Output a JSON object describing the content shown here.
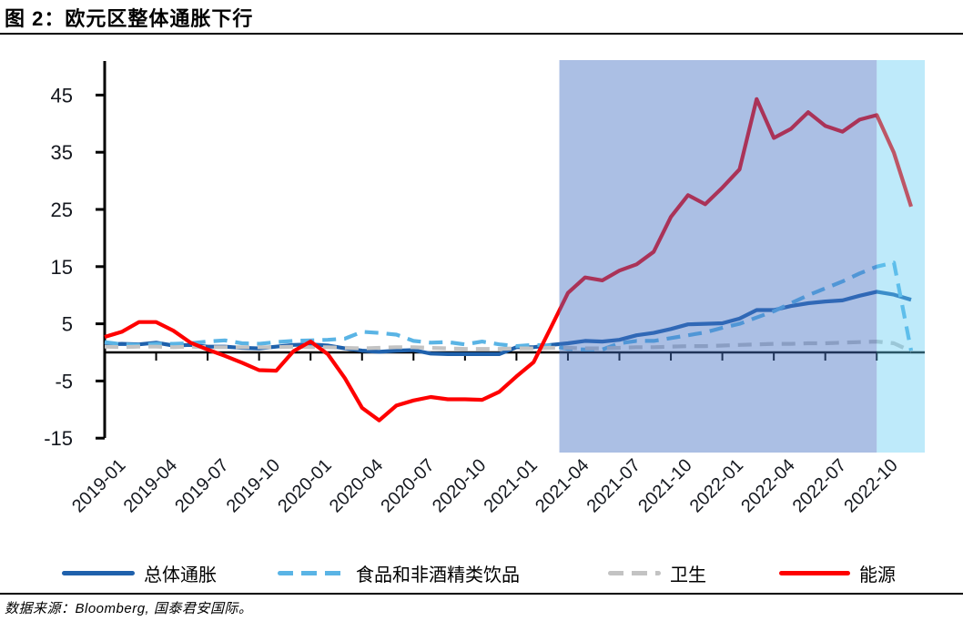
{
  "title": "图 2：欧元区整体通胀下行",
  "footer": {
    "source_text": "数据来源：Bloomberg, 国泰君安国际。"
  },
  "chart_data": {
    "type": "line",
    "title": "欧元区整体通胀下行",
    "x_unit": "monthly, 2019-01 to 2022-12 (YoY %)",
    "x_tick_labels": [
      "2019-01",
      "2019-04",
      "2019-07",
      "2019-10",
      "2020-01",
      "2020-04",
      "2020-07",
      "2020-10",
      "2021-01",
      "2021-04",
      "2021-07",
      "2021-10",
      "2022-01",
      "2022-04",
      "2022-07",
      "2022-10"
    ],
    "y_ticks": [
      -15,
      -5,
      5,
      15,
      25,
      35,
      45
    ],
    "ylim": [
      -15,
      50
    ],
    "grid": false,
    "legend_position": "bottom",
    "series": [
      {
        "name": "总体通胀",
        "color": "#1f61ac",
        "style": "solid",
        "values": [
          1.4,
          1.5,
          1.4,
          1.7,
          1.2,
          1.3,
          1.0,
          1.0,
          0.8,
          0.7,
          1.0,
          1.3,
          1.4,
          1.2,
          0.7,
          0.3,
          0.1,
          0.3,
          0.4,
          -0.2,
          -0.3,
          -0.3,
          -0.3,
          -0.3,
          0.9,
          0.9,
          1.3,
          1.6,
          2.0,
          1.9,
          2.2,
          3.0,
          3.4,
          4.1,
          4.9,
          5.0,
          5.1,
          5.9,
          7.4,
          7.4,
          8.1,
          8.6,
          8.9,
          9.1,
          9.9,
          10.6,
          10.1,
          9.2
        ]
      },
      {
        "name": "食品和非酒精类饮品",
        "color": "#5ab4e5",
        "style": "dashed",
        "values": [
          1.8,
          1.4,
          1.3,
          1.5,
          1.5,
          1.6,
          1.9,
          2.1,
          1.6,
          1.5,
          1.8,
          2.0,
          2.1,
          2.2,
          2.4,
          3.6,
          3.4,
          3.1,
          2.0,
          1.7,
          1.8,
          1.4,
          1.9,
          1.4,
          1.1,
          1.3,
          1.2,
          0.6,
          0.5,
          0.5,
          1.6,
          2.0,
          2.0,
          2.5,
          3.0,
          3.5,
          4.3,
          5.0,
          6.1,
          7.2,
          8.6,
          10.0,
          11.2,
          12.4,
          13.8,
          15.0,
          15.7,
          0.3
        ]
      },
      {
        "name": "卫生",
        "color": "#c3c3c3",
        "style": "dashed",
        "values": [
          1.0,
          0.9,
          1.0,
          1.0,
          0.9,
          1.0,
          0.9,
          0.9,
          0.9,
          0.9,
          0.9,
          1.0,
          0.9,
          0.9,
          0.8,
          0.7,
          0.8,
          0.9,
          0.9,
          0.8,
          0.7,
          0.6,
          0.6,
          0.6,
          0.7,
          0.7,
          0.8,
          0.8,
          0.7,
          0.7,
          0.8,
          0.9,
          0.9,
          1.0,
          1.1,
          1.1,
          1.2,
          1.3,
          1.4,
          1.5,
          1.5,
          1.6,
          1.6,
          1.7,
          1.8,
          1.9,
          1.6,
          0.2
        ]
      },
      {
        "name": "能源",
        "color": "#fe0000",
        "style": "solid",
        "values": [
          2.7,
          3.6,
          5.3,
          5.3,
          3.8,
          1.7,
          0.5,
          -0.6,
          -1.8,
          -3.1,
          -3.2,
          0.2,
          1.9,
          -0.3,
          -4.5,
          -9.7,
          -11.9,
          -9.3,
          -8.4,
          -7.8,
          -8.2,
          -8.2,
          -8.3,
          -6.9,
          -4.2,
          -1.7,
          4.3,
          10.4,
          13.1,
          12.6,
          14.3,
          15.4,
          17.6,
          23.7,
          27.5,
          25.9,
          28.8,
          32.0,
          44.3,
          37.5,
          39.1,
          42.0,
          39.6,
          38.6,
          40.7,
          41.5,
          34.9,
          25.5
        ]
      }
    ],
    "shaded_regions": [
      {
        "from": "2021-04",
        "to": "2022-10",
        "x_from_index": 26.5,
        "x_to_index": 45,
        "color": "rgba(68,114,196,0.45)"
      },
      {
        "from": "2022-10",
        "to": "2022-12",
        "x_from_index": 45,
        "x_to_index": 47.8,
        "color": "rgba(100,205,242,0.42)"
      }
    ],
    "axis_color": "#000000"
  }
}
